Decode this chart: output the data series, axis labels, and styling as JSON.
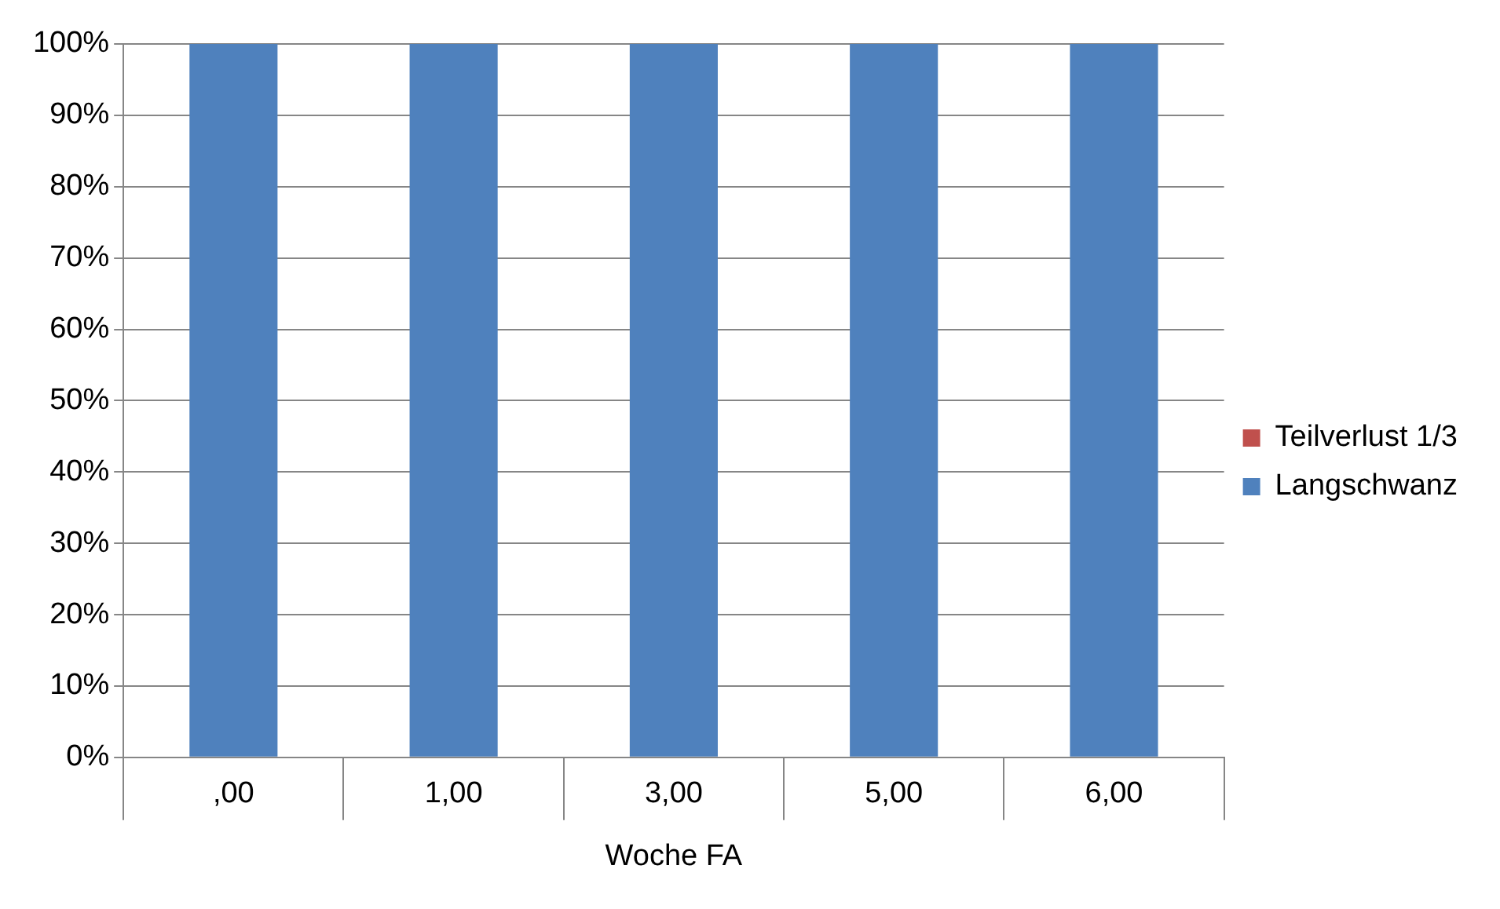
{
  "chart_data": {
    "type": "bar",
    "stacked": true,
    "xlabel": "Woche FA",
    "categories": [
      ",00",
      "1,00",
      "3,00",
      "5,00",
      "6,00"
    ],
    "series": [
      {
        "name": "Langschwanz",
        "color": "#4f81bd",
        "values": [
          100,
          100,
          100,
          100,
          100
        ]
      },
      {
        "name": "Teilverlust 1/3",
        "color": "#c0504d",
        "values": [
          0,
          0,
          0,
          0,
          0
        ]
      }
    ],
    "ylim": [
      0,
      100
    ],
    "yticks": [
      {
        "value": 0,
        "label": "0%"
      },
      {
        "value": 10,
        "label": "10%"
      },
      {
        "value": 20,
        "label": "20%"
      },
      {
        "value": 30,
        "label": "30%"
      },
      {
        "value": 40,
        "label": "40%"
      },
      {
        "value": 50,
        "label": "50%"
      },
      {
        "value": 60,
        "label": "60%"
      },
      {
        "value": 70,
        "label": "70%"
      },
      {
        "value": 80,
        "label": "80%"
      },
      {
        "value": 90,
        "label": "90%"
      },
      {
        "value": 100,
        "label": "100%"
      }
    ],
    "grid": "y",
    "legend": "right"
  }
}
